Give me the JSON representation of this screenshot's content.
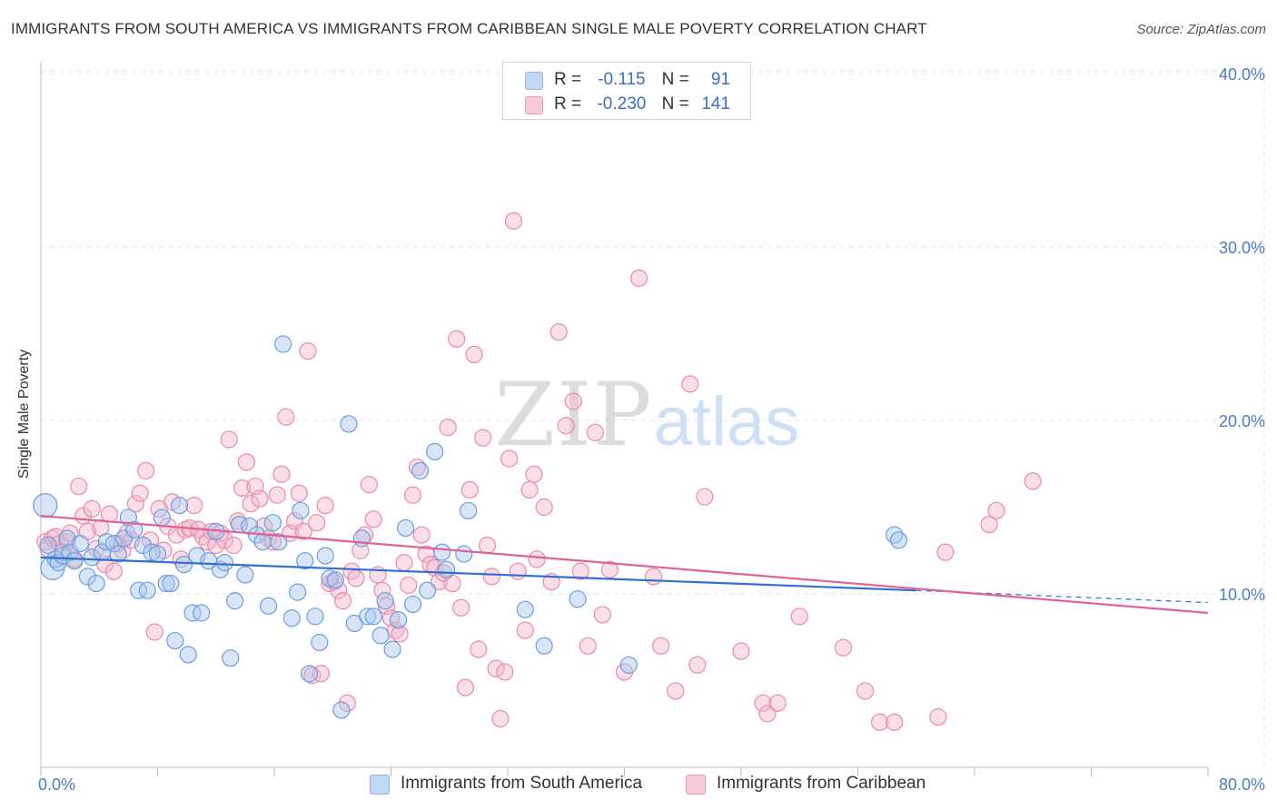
{
  "title": "IMMIGRANTS FROM SOUTH AMERICA VS IMMIGRANTS FROM CARIBBEAN SINGLE MALE POVERTY CORRELATION CHART",
  "source": "Source: ZipAtlas.com",
  "watermark": {
    "zip": "ZIP",
    "atlas": "atlas"
  },
  "colors": {
    "blue_fill": "#a9c5ee",
    "blue_stroke": "#6a9ee0",
    "blue_line": "#2f6fcf",
    "pink_fill": "#f4b6cb",
    "pink_stroke": "#e98aaa",
    "pink_line": "#e0609a",
    "axis_text": "#4a7cc9",
    "grid": "#e3e3e3"
  },
  "legend": {
    "rows": [
      {
        "r_label": "R =",
        "r_value": "-0.115",
        "n_label": "N =",
        "n_value": "91",
        "color": "blue"
      },
      {
        "r_label": "R =",
        "r_value": "-0.230",
        "n_label": "N =",
        "n_value": "141",
        "color": "pink"
      }
    ]
  },
  "bottom_legend": [
    {
      "label": "Immigrants from South America",
      "color": "blue"
    },
    {
      "label": "Immigrants from Caribbean",
      "color": "pink"
    }
  ],
  "chart_data": {
    "type": "scatter",
    "title": "IMMIGRANTS FROM SOUTH AMERICA VS IMMIGRANTS FROM CARIBBEAN SINGLE MALE POVERTY CORRELATION CHART",
    "xlabel": "",
    "ylabel": "Single Male Poverty",
    "xlim": [
      0,
      80
    ],
    "ylim": [
      0,
      40
    ],
    "x_tick_labels": [
      "0.0%",
      "80.0%"
    ],
    "y_ticks": [
      10,
      20,
      30,
      40
    ],
    "y_tick_labels": [
      "10.0%",
      "20.0%",
      "30.0%",
      "40.0%"
    ],
    "grid": true,
    "legend_position": "top-center",
    "series": [
      {
        "name": "Immigrants from South America",
        "color": "blue",
        "R": -0.115,
        "N": 91,
        "trendline": {
          "x": [
            0,
            60
          ],
          "y": [
            12.1,
            10.2
          ],
          "dashed_extension_x": [
            60,
            80
          ],
          "dashed_extension_y": [
            10.2,
            9.5
          ]
        },
        "points": [
          [
            0.3,
            15.1
          ],
          [
            0.5,
            12.8
          ],
          [
            0.8,
            11.5
          ],
          [
            1.0,
            12.0
          ],
          [
            1.2,
            11.8
          ],
          [
            1.5,
            12.2
          ],
          [
            1.8,
            13.2
          ],
          [
            2.0,
            12.4
          ],
          [
            2.3,
            11.9
          ],
          [
            2.7,
            12.9
          ],
          [
            3.2,
            11.0
          ],
          [
            3.5,
            12.1
          ],
          [
            3.8,
            10.6
          ],
          [
            4.2,
            12.4
          ],
          [
            4.5,
            13.0
          ],
          [
            5.0,
            12.9
          ],
          [
            5.3,
            12.3
          ],
          [
            5.7,
            13.2
          ],
          [
            6.0,
            14.4
          ],
          [
            6.4,
            13.7
          ],
          [
            6.7,
            10.2
          ],
          [
            7.0,
            12.8
          ],
          [
            7.3,
            10.2
          ],
          [
            7.6,
            12.4
          ],
          [
            8.0,
            12.3
          ],
          [
            8.3,
            14.4
          ],
          [
            8.6,
            10.6
          ],
          [
            8.9,
            10.6
          ],
          [
            9.2,
            7.3
          ],
          [
            9.5,
            15.1
          ],
          [
            9.8,
            11.7
          ],
          [
            10.1,
            6.5
          ],
          [
            10.4,
            8.9
          ],
          [
            10.7,
            12.2
          ],
          [
            11.0,
            8.9
          ],
          [
            11.5,
            11.9
          ],
          [
            12.0,
            13.6
          ],
          [
            12.3,
            11.4
          ],
          [
            12.6,
            11.8
          ],
          [
            13.0,
            6.3
          ],
          [
            13.3,
            9.6
          ],
          [
            13.6,
            14.0
          ],
          [
            14.0,
            11.1
          ],
          [
            14.3,
            13.9
          ],
          [
            14.8,
            13.4
          ],
          [
            15.2,
            13.0
          ],
          [
            15.6,
            9.3
          ],
          [
            15.9,
            14.1
          ],
          [
            16.3,
            13.0
          ],
          [
            16.6,
            24.4
          ],
          [
            17.2,
            8.6
          ],
          [
            17.6,
            10.1
          ],
          [
            17.8,
            14.8
          ],
          [
            18.1,
            11.9
          ],
          [
            18.4,
            5.4
          ],
          [
            18.8,
            8.7
          ],
          [
            19.1,
            7.2
          ],
          [
            19.5,
            12.2
          ],
          [
            19.8,
            10.9
          ],
          [
            20.2,
            10.8
          ],
          [
            20.6,
            3.3
          ],
          [
            21.1,
            19.8
          ],
          [
            21.5,
            8.3
          ],
          [
            22.0,
            13.2
          ],
          [
            22.4,
            8.7
          ],
          [
            22.8,
            8.7
          ],
          [
            23.3,
            7.6
          ],
          [
            23.6,
            9.6
          ],
          [
            24.1,
            6.8
          ],
          [
            24.5,
            8.5
          ],
          [
            25.0,
            13.8
          ],
          [
            25.5,
            9.4
          ],
          [
            26.0,
            17.1
          ],
          [
            26.5,
            10.2
          ],
          [
            27.0,
            18.2
          ],
          [
            27.5,
            12.4
          ],
          [
            27.8,
            11.4
          ],
          [
            29.0,
            12.3
          ],
          [
            29.3,
            14.8
          ],
          [
            33.2,
            9.1
          ],
          [
            34.5,
            7.0
          ],
          [
            36.8,
            9.7
          ],
          [
            40.3,
            5.9
          ],
          [
            58.5,
            13.4
          ],
          [
            58.8,
            13.1
          ]
        ]
      },
      {
        "name": "Immigrants from Caribbean",
        "color": "pink",
        "R": -0.23,
        "N": 141,
        "trendline": {
          "x": [
            0,
            80
          ],
          "y": [
            14.5,
            8.9
          ]
        },
        "points": [
          [
            0.3,
            13.0
          ],
          [
            0.5,
            12.6
          ],
          [
            0.8,
            13.2
          ],
          [
            1.0,
            13.3
          ],
          [
            1.3,
            12.9
          ],
          [
            1.5,
            12.4
          ],
          [
            1.8,
            13.0
          ],
          [
            2.0,
            13.5
          ],
          [
            2.3,
            12.0
          ],
          [
            2.6,
            16.2
          ],
          [
            2.9,
            14.5
          ],
          [
            3.2,
            13.6
          ],
          [
            3.5,
            14.9
          ],
          [
            3.8,
            12.6
          ],
          [
            4.1,
            13.8
          ],
          [
            4.4,
            11.7
          ],
          [
            4.7,
            14.6
          ],
          [
            5.0,
            11.3
          ],
          [
            5.3,
            12.9
          ],
          [
            5.6,
            12.5
          ],
          [
            5.9,
            13.5
          ],
          [
            6.2,
            13.1
          ],
          [
            6.5,
            15.2
          ],
          [
            6.8,
            15.8
          ],
          [
            7.2,
            17.1
          ],
          [
            7.5,
            13.1
          ],
          [
            7.8,
            7.8
          ],
          [
            8.1,
            14.9
          ],
          [
            8.4,
            12.5
          ],
          [
            8.7,
            13.9
          ],
          [
            9.0,
            15.3
          ],
          [
            9.3,
            13.4
          ],
          [
            9.6,
            12.0
          ],
          [
            9.9,
            13.7
          ],
          [
            10.2,
            13.8
          ],
          [
            10.5,
            15.1
          ],
          [
            10.8,
            13.7
          ],
          [
            11.1,
            13.3
          ],
          [
            11.4,
            13.0
          ],
          [
            11.7,
            13.6
          ],
          [
            12.0,
            12.8
          ],
          [
            12.3,
            13.5
          ],
          [
            12.6,
            13.1
          ],
          [
            12.9,
            18.9
          ],
          [
            13.2,
            12.8
          ],
          [
            13.5,
            14.2
          ],
          [
            13.8,
            16.1
          ],
          [
            14.1,
            17.6
          ],
          [
            14.4,
            15.2
          ],
          [
            14.7,
            16.2
          ],
          [
            15.0,
            15.5
          ],
          [
            15.3,
            13.9
          ],
          [
            15.6,
            13.2
          ],
          [
            15.9,
            13.0
          ],
          [
            16.2,
            15.7
          ],
          [
            16.5,
            16.9
          ],
          [
            16.8,
            20.2
          ],
          [
            17.1,
            13.5
          ],
          [
            17.4,
            14.2
          ],
          [
            17.7,
            15.8
          ],
          [
            18.0,
            13.6
          ],
          [
            18.3,
            24.0
          ],
          [
            18.6,
            5.3
          ],
          [
            18.9,
            14.1
          ],
          [
            19.2,
            5.4
          ],
          [
            19.5,
            15.1
          ],
          [
            19.8,
            10.6
          ],
          [
            20.1,
            10.7
          ],
          [
            20.4,
            10.2
          ],
          [
            20.7,
            9.6
          ],
          [
            21.0,
            3.7
          ],
          [
            21.3,
            11.3
          ],
          [
            21.6,
            10.9
          ],
          [
            21.9,
            12.5
          ],
          [
            22.2,
            13.4
          ],
          [
            22.5,
            16.3
          ],
          [
            22.8,
            14.3
          ],
          [
            23.1,
            11.1
          ],
          [
            23.4,
            10.2
          ],
          [
            23.7,
            9.3
          ],
          [
            24.0,
            8.6
          ],
          [
            24.3,
            7.9
          ],
          [
            24.6,
            7.7
          ],
          [
            24.9,
            11.8
          ],
          [
            25.2,
            10.5
          ],
          [
            25.5,
            15.7
          ],
          [
            25.8,
            17.3
          ],
          [
            26.1,
            13.4
          ],
          [
            26.4,
            12.3
          ],
          [
            26.7,
            11.7
          ],
          [
            27.0,
            11.5
          ],
          [
            27.3,
            10.7
          ],
          [
            27.6,
            11.2
          ],
          [
            27.9,
            19.6
          ],
          [
            28.2,
            10.6
          ],
          [
            28.5,
            24.7
          ],
          [
            28.8,
            9.2
          ],
          [
            29.1,
            4.6
          ],
          [
            29.4,
            16.0
          ],
          [
            29.7,
            23.8
          ],
          [
            30.0,
            6.8
          ],
          [
            30.3,
            19.0
          ],
          [
            30.6,
            12.8
          ],
          [
            30.9,
            11.0
          ],
          [
            31.2,
            5.7
          ],
          [
            31.5,
            2.8
          ],
          [
            31.8,
            5.5
          ],
          [
            32.1,
            17.8
          ],
          [
            32.4,
            31.5
          ],
          [
            32.7,
            11.3
          ],
          [
            33.2,
            7.9
          ],
          [
            33.5,
            16.0
          ],
          [
            33.8,
            16.9
          ],
          [
            34.0,
            12.0
          ],
          [
            34.5,
            15.0
          ],
          [
            35.0,
            10.7
          ],
          [
            35.5,
            25.1
          ],
          [
            36.0,
            19.7
          ],
          [
            36.5,
            21.1
          ],
          [
            37.0,
            11.3
          ],
          [
            37.5,
            7.0
          ],
          [
            38.0,
            19.3
          ],
          [
            38.5,
            8.8
          ],
          [
            39.0,
            11.4
          ],
          [
            40.0,
            5.5
          ],
          [
            41.0,
            28.2
          ],
          [
            42.0,
            11.0
          ],
          [
            42.5,
            7.0
          ],
          [
            43.5,
            4.4
          ],
          [
            44.5,
            22.1
          ],
          [
            45.0,
            5.9
          ],
          [
            45.5,
            15.6
          ],
          [
            48.0,
            6.7
          ],
          [
            49.5,
            3.7
          ],
          [
            49.8,
            3.1
          ],
          [
            50.5,
            3.7
          ],
          [
            52.0,
            8.7
          ],
          [
            55.0,
            6.9
          ],
          [
            56.5,
            4.4
          ],
          [
            57.5,
            2.6
          ],
          [
            58.5,
            2.6
          ],
          [
            61.5,
            2.9
          ],
          [
            62.0,
            12.4
          ],
          [
            65.0,
            14.0
          ],
          [
            65.5,
            14.8
          ],
          [
            68.0,
            16.5
          ]
        ]
      }
    ]
  }
}
